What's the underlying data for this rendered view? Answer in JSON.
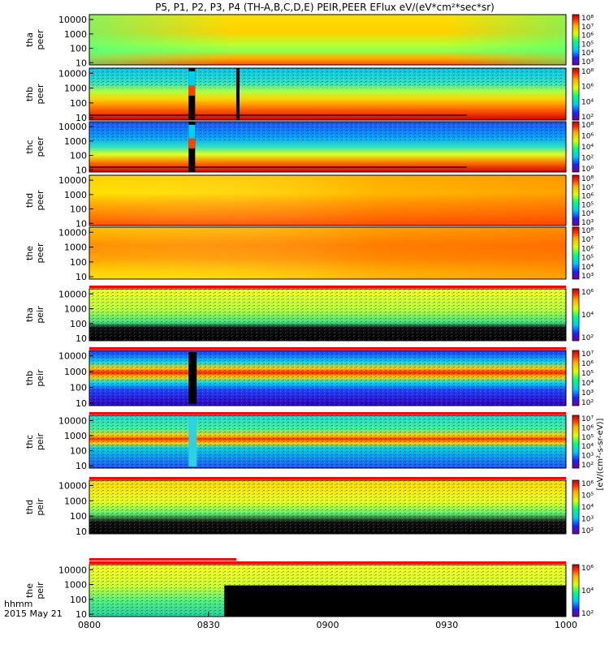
{
  "chart_data": {
    "type": "heatmap",
    "title": "P5, P1, P2, P3, P4 (TH-A,B,C,D,E) PEIR,PEER EFlux eV/(eV*cm²*sec*sr)",
    "x_axis": {
      "range": [
        "0800",
        "1000"
      ],
      "ticks": [
        "0800",
        "0830",
        "0900",
        "0930",
        "1000"
      ],
      "label_line1": "hhmm",
      "label_line2": "2015 May 21"
    },
    "y_axis": {
      "scale": "log",
      "units": "eV",
      "ticks": [
        "10",
        "100",
        "1000",
        "10000"
      ]
    },
    "colorbar": {
      "label": "[eV/(cm²-s-sr-eV)]",
      "scale": "log"
    },
    "panels": [
      {
        "probe": "tha",
        "species": "peer",
        "cb_ticks": [
          "10⁸",
          "10⁷",
          "10⁶",
          "10⁵",
          "10⁴",
          "10³"
        ]
      },
      {
        "probe": "thb",
        "species": "peer",
        "cb_ticks": [
          "10⁸",
          "10⁶",
          "10⁴",
          "10²"
        ]
      },
      {
        "probe": "thc",
        "species": "peer",
        "cb_ticks": [
          "10⁸",
          "10⁶",
          "10⁴",
          "10²",
          "10⁰"
        ]
      },
      {
        "probe": "thd",
        "species": "peer",
        "cb_ticks": [
          "10⁸",
          "10⁷",
          "10⁶",
          "10⁵",
          "10⁴",
          "10³"
        ]
      },
      {
        "probe": "the",
        "species": "peer",
        "cb_ticks": [
          "10⁸",
          "10⁷",
          "10⁶",
          "10⁵",
          "10⁴",
          "10³"
        ]
      },
      {
        "probe": "tha",
        "species": "peir",
        "cb_ticks": [
          "10⁶",
          "10⁴",
          "10²"
        ]
      },
      {
        "probe": "thb",
        "species": "peir",
        "cb_ticks": [
          "10⁷",
          "10⁶",
          "10⁵",
          "10⁴",
          "10³",
          "10²"
        ]
      },
      {
        "probe": "thc",
        "species": "peir",
        "cb_ticks": [
          "10⁷",
          "10⁶",
          "10⁵",
          "10⁴",
          "10³",
          "10²"
        ]
      },
      {
        "probe": "thd",
        "species": "peir",
        "cb_ticks": [
          "10⁶",
          "10⁵",
          "10⁴",
          "10³",
          "10²"
        ]
      },
      {
        "probe": "the",
        "species": "peir",
        "cb_ticks": [
          "10⁶",
          "10⁴",
          "10²"
        ]
      }
    ]
  }
}
